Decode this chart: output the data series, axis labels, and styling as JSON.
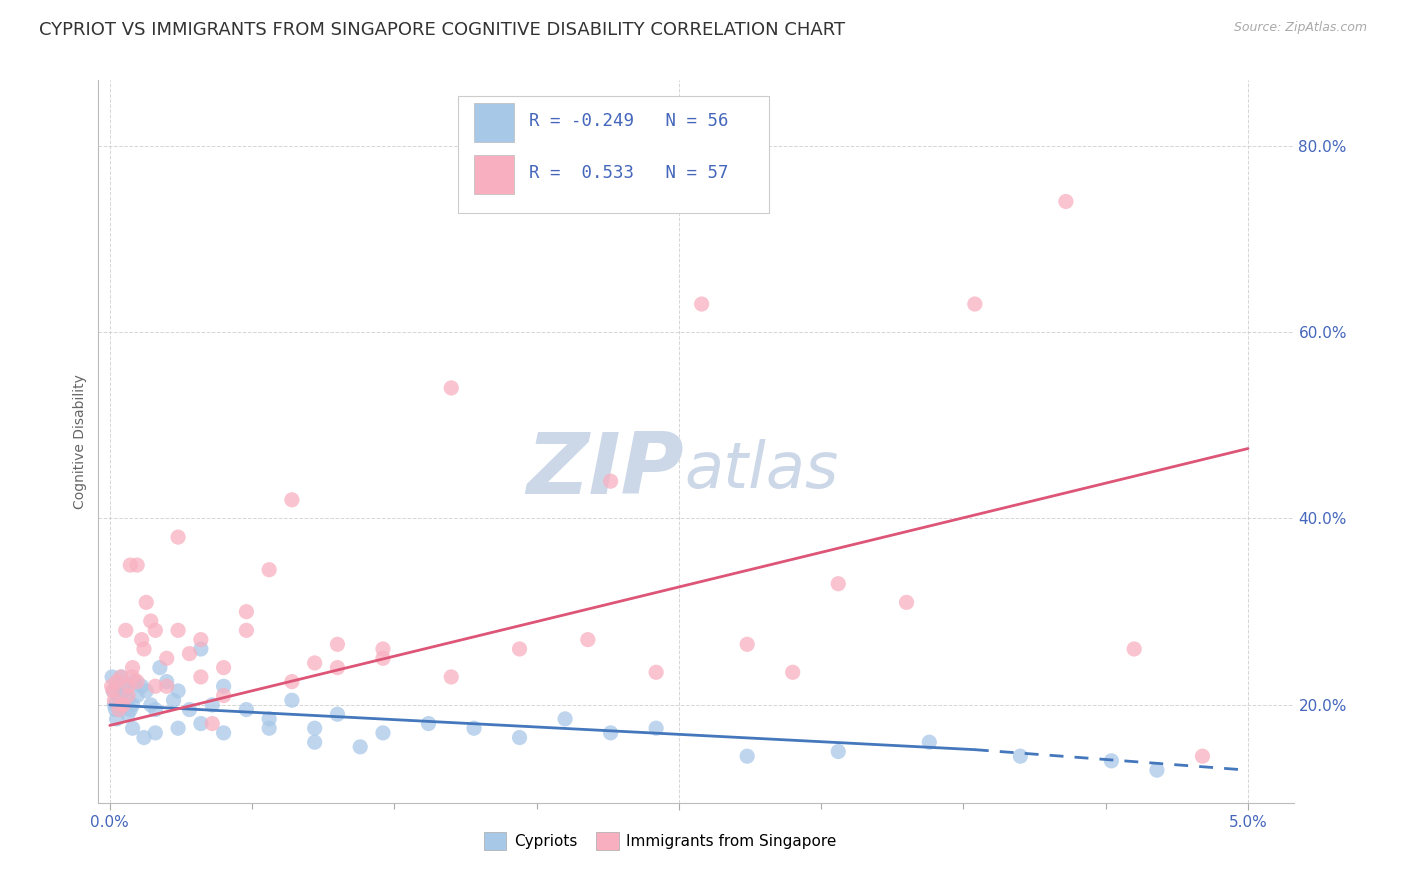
{
  "title": "CYPRIOT VS IMMIGRANTS FROM SINGAPORE COGNITIVE DISABILITY CORRELATION CHART",
  "source": "Source: ZipAtlas.com",
  "ylabel": "Cognitive Disability",
  "series": [
    {
      "name": "Cypriots",
      "color": "#a8c8e8",
      "line_color": "#4477bb",
      "R": -0.249,
      "N": 56,
      "x": [
        0.0001,
        0.00015,
        0.0002,
        0.00025,
        0.0003,
        0.00035,
        0.0004,
        0.00045,
        0.0005,
        0.0006,
        0.0007,
        0.0008,
        0.0009,
        0.001,
        0.0011,
        0.0012,
        0.0014,
        0.0016,
        0.0018,
        0.002,
        0.0022,
        0.0025,
        0.0028,
        0.003,
        0.0035,
        0.004,
        0.0045,
        0.005,
        0.006,
        0.007,
        0.008,
        0.009,
        0.01,
        0.012,
        0.014,
        0.016,
        0.018,
        0.02,
        0.022,
        0.024,
        0.0008,
        0.001,
        0.0015,
        0.002,
        0.003,
        0.004,
        0.005,
        0.007,
        0.009,
        0.011,
        0.028,
        0.032,
        0.036,
        0.04,
        0.044,
        0.046
      ],
      "y": [
        0.23,
        0.215,
        0.2,
        0.195,
        0.185,
        0.22,
        0.21,
        0.195,
        0.23,
        0.215,
        0.22,
        0.205,
        0.195,
        0.2,
        0.225,
        0.21,
        0.22,
        0.215,
        0.2,
        0.195,
        0.24,
        0.225,
        0.205,
        0.215,
        0.195,
        0.26,
        0.2,
        0.22,
        0.195,
        0.185,
        0.205,
        0.175,
        0.19,
        0.17,
        0.18,
        0.175,
        0.165,
        0.185,
        0.17,
        0.175,
        0.19,
        0.175,
        0.165,
        0.17,
        0.175,
        0.18,
        0.17,
        0.175,
        0.16,
        0.155,
        0.145,
        0.15,
        0.16,
        0.145,
        0.14,
        0.13
      ]
    },
    {
      "name": "Immigrants from Singapore",
      "color": "#f8b0c0",
      "line_color": "#dd5577",
      "R": 0.533,
      "N": 57,
      "x": [
        8e-05,
        0.00015,
        0.0002,
        0.0003,
        0.0004,
        0.0005,
        0.0006,
        0.0007,
        0.0008,
        0.0009,
        0.001,
        0.0012,
        0.0014,
        0.0016,
        0.0018,
        0.002,
        0.0025,
        0.003,
        0.0035,
        0.004,
        0.0045,
        0.005,
        0.006,
        0.007,
        0.008,
        0.009,
        0.01,
        0.012,
        0.015,
        0.0005,
        0.0008,
        0.001,
        0.0012,
        0.0015,
        0.002,
        0.0025,
        0.003,
        0.004,
        0.005,
        0.006,
        0.008,
        0.01,
        0.012,
        0.015,
        0.018,
        0.021,
        0.024,
        0.028,
        0.032,
        0.022,
        0.026,
        0.03,
        0.038,
        0.035,
        0.042,
        0.045,
        0.048
      ],
      "y": [
        0.22,
        0.215,
        0.205,
        0.225,
        0.195,
        0.23,
        0.2,
        0.28,
        0.22,
        0.35,
        0.24,
        0.225,
        0.27,
        0.31,
        0.29,
        0.28,
        0.22,
        0.38,
        0.255,
        0.27,
        0.18,
        0.21,
        0.3,
        0.345,
        0.42,
        0.245,
        0.265,
        0.25,
        0.54,
        0.2,
        0.21,
        0.23,
        0.35,
        0.26,
        0.22,
        0.25,
        0.28,
        0.23,
        0.24,
        0.28,
        0.225,
        0.24,
        0.26,
        0.23,
        0.26,
        0.27,
        0.235,
        0.265,
        0.33,
        0.44,
        0.63,
        0.235,
        0.63,
        0.31,
        0.74,
        0.26,
        0.145
      ]
    }
  ],
  "trend_blue_x0": 0.0,
  "trend_blue_x1": 0.038,
  "trend_blue_x2": 0.05,
  "trend_blue_y0": 0.2,
  "trend_blue_y1": 0.152,
  "trend_blue_y2": 0.13,
  "trend_blue_color": "#4477bb",
  "trend_pink_x0": 0.0,
  "trend_pink_x1": 0.05,
  "trend_pink_y0": 0.178,
  "trend_pink_y1": 0.475,
  "trend_pink_color": "#dd5577",
  "y_ticks": [
    0.2,
    0.4,
    0.6,
    0.8
  ],
  "y_tick_labels": [
    "20.0%",
    "40.0%",
    "60.0%",
    "80.0%"
  ],
  "x_ticks": [
    0.0,
    0.00625,
    0.0125,
    0.01875,
    0.025,
    0.03125,
    0.0375,
    0.04375,
    0.05
  ],
  "x_label_ticks": [
    0.0,
    0.025,
    0.05
  ],
  "x_label_text": [
    "0.0%",
    "",
    "5.0%"
  ],
  "xlim": [
    -0.0005,
    0.052
  ],
  "ylim": [
    0.095,
    0.87
  ],
  "background": "#ffffff",
  "grid_color": "#cccccc",
  "title_fontsize": 13,
  "axis_label_fontsize": 10,
  "watermark_color": "#ccd8e8",
  "legend_color": "#4466bb",
  "legend_text_dark": "#333333"
}
